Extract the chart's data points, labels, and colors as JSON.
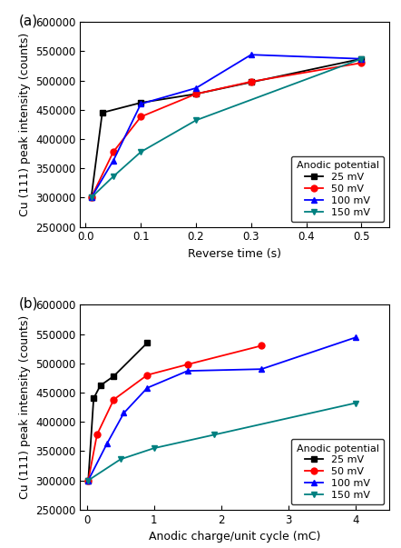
{
  "panel_a": {
    "title": "(a)",
    "xlabel": "Reverse time (s)",
    "ylabel": "Cu (111) peak intensity (counts)",
    "xlim": [
      -0.01,
      0.55
    ],
    "ylim": [
      250000,
      600000
    ],
    "xticks": [
      0.0,
      0.1,
      0.2,
      0.3,
      0.4,
      0.5
    ],
    "yticks": [
      250000,
      300000,
      350000,
      400000,
      450000,
      500000,
      550000,
      600000
    ],
    "series": [
      {
        "label": "25 mV",
        "color": "#000000",
        "marker": "s",
        "markersize": 5,
        "x": [
          0.01,
          0.03,
          0.1,
          0.2,
          0.3,
          0.5
        ],
        "y": [
          300000,
          445000,
          462000,
          477000,
          497000,
          537000
        ]
      },
      {
        "label": "50 mV",
        "color": "#ff0000",
        "marker": "o",
        "markersize": 5,
        "x": [
          0.01,
          0.05,
          0.1,
          0.2,
          0.3,
          0.5
        ],
        "y": [
          300000,
          378000,
          438000,
          477000,
          498000,
          530000
        ]
      },
      {
        "label": "100 mV",
        "color": "#0000ff",
        "marker": "^",
        "markersize": 5,
        "x": [
          0.01,
          0.05,
          0.1,
          0.2,
          0.3,
          0.5
        ],
        "y": [
          300000,
          363000,
          460000,
          487000,
          544000,
          537000
        ]
      },
      {
        "label": "150 mV",
        "color": "#008080",
        "marker": "v",
        "markersize": 5,
        "x": [
          0.01,
          0.05,
          0.1,
          0.2,
          0.5
        ],
        "y": [
          300000,
          336000,
          378000,
          432000,
          537000
        ]
      }
    ],
    "legend_title": "Anodic potential",
    "legend_loc": "lower right"
  },
  "panel_b": {
    "title": "(b)",
    "xlabel": "Anodic charge/unit cycle (mC)",
    "ylabel": "Cu (111) peak intensity (counts)",
    "xlim": [
      -0.1,
      4.5
    ],
    "ylim": [
      250000,
      600000
    ],
    "xticks": [
      0,
      1,
      2,
      3,
      4
    ],
    "yticks": [
      250000,
      300000,
      350000,
      400000,
      450000,
      500000,
      550000,
      600000
    ],
    "series": [
      {
        "label": "25 mV",
        "color": "#000000",
        "marker": "s",
        "markersize": 5,
        "x": [
          0.02,
          0.1,
          0.2,
          0.4,
          0.9
        ],
        "y": [
          300000,
          440000,
          462000,
          478000,
          535000
        ]
      },
      {
        "label": "50 mV",
        "color": "#ff0000",
        "marker": "o",
        "markersize": 5,
        "x": [
          0.02,
          0.15,
          0.4,
          0.9,
          1.5,
          2.6
        ],
        "y": [
          300000,
          378000,
          438000,
          480000,
          498000,
          530000
        ]
      },
      {
        "label": "100 mV",
        "color": "#0000ff",
        "marker": "^",
        "markersize": 5,
        "x": [
          0.02,
          0.3,
          0.55,
          0.9,
          1.5,
          2.6,
          4.0
        ],
        "y": [
          300000,
          363000,
          415000,
          458000,
          487000,
          490000,
          544000
        ]
      },
      {
        "label": "150 mV",
        "color": "#008080",
        "marker": "v",
        "markersize": 5,
        "x": [
          0.02,
          0.5,
          1.0,
          1.9,
          4.0
        ],
        "y": [
          300000,
          336000,
          355000,
          378000,
          432000
        ]
      }
    ],
    "legend_title": "Anodic potential",
    "legend_loc": "lower right"
  }
}
